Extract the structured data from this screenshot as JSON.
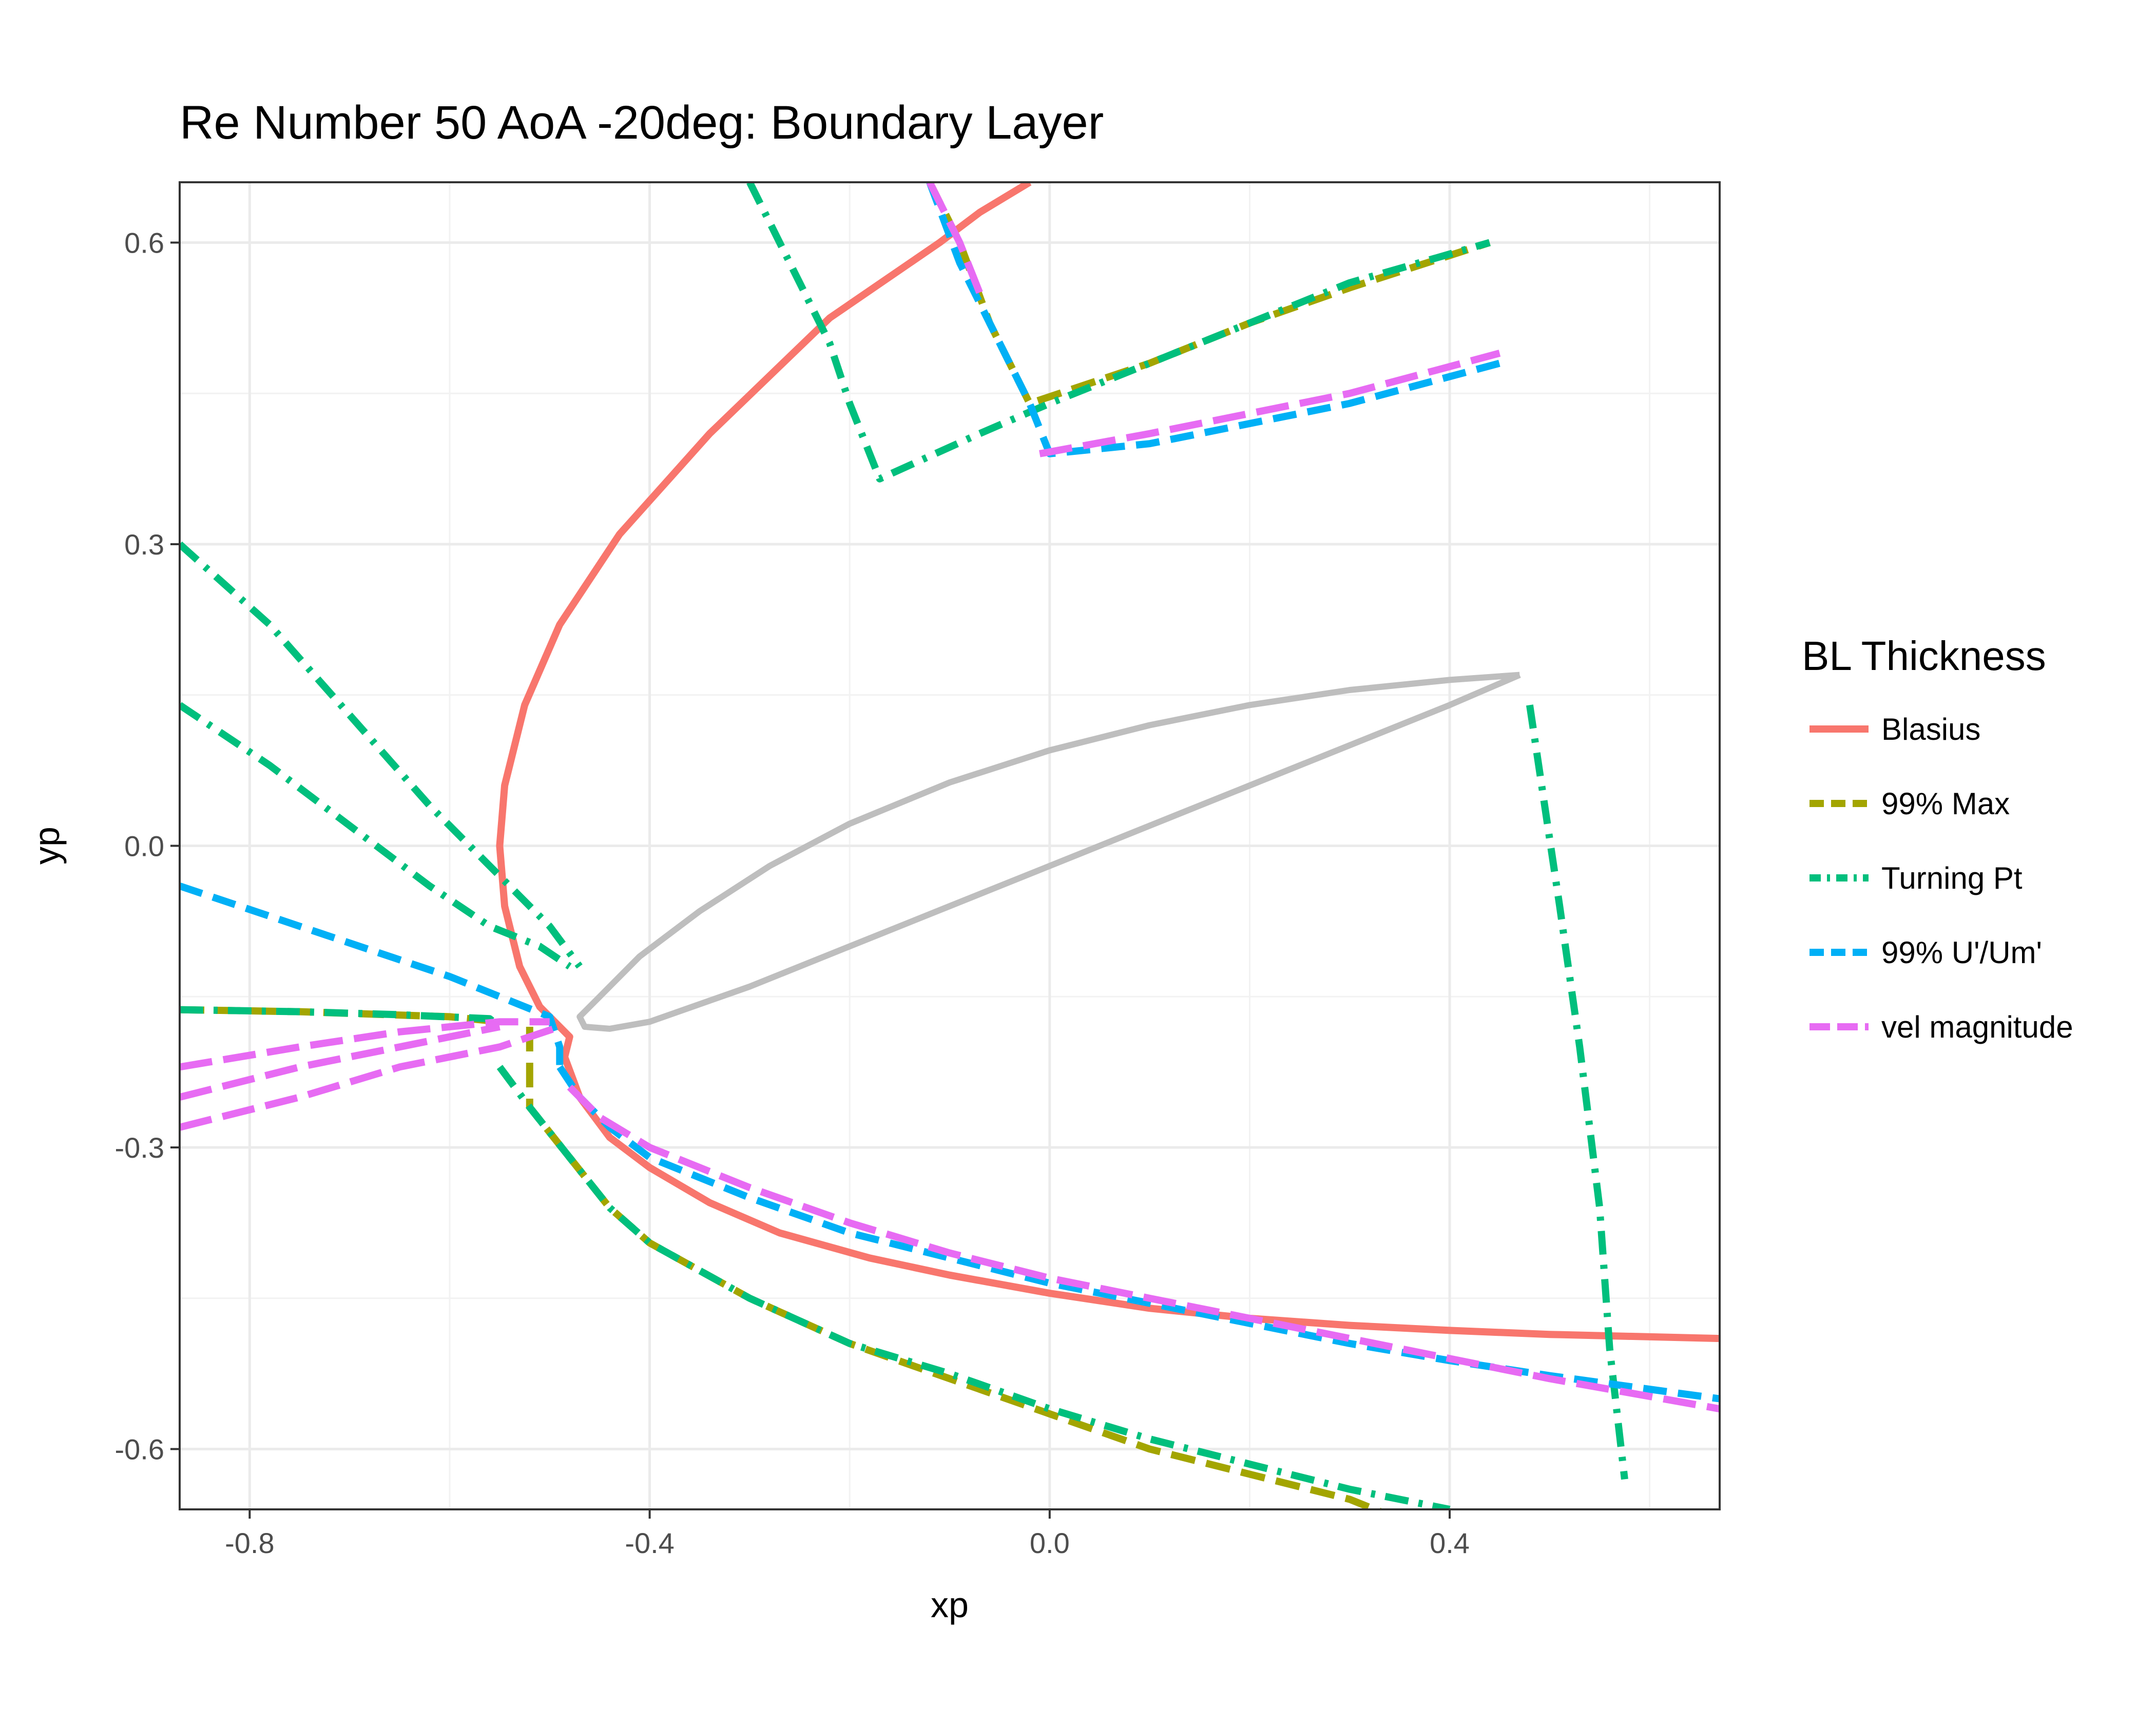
{
  "chart_data": {
    "type": "line",
    "title": "Re Number 50 AoA -20deg: Boundary Layer",
    "xlabel": "xp",
    "ylabel": "yp",
    "xlim": [
      -0.87,
      0.67
    ],
    "ylim": [
      -0.66,
      0.66
    ],
    "x_ticks": [
      -0.8,
      -0.4,
      0.0,
      0.4
    ],
    "x_tick_labels": [
      "-0.8",
      "-0.4",
      "0.0",
      "0.4"
    ],
    "y_ticks": [
      -0.6,
      -0.3,
      0.0,
      0.3,
      0.6
    ],
    "y_tick_labels": [
      "-0.6",
      "-0.3",
      "0.0",
      "0.3",
      "0.6"
    ],
    "grid": true,
    "legend_title": "BL Thickness",
    "legend_position": "right",
    "airfoil": {
      "name": "airfoil outline",
      "color": "#BEBEBE",
      "points": [
        [
          0.47,
          0.17
        ],
        [
          0.4,
          0.165
        ],
        [
          0.3,
          0.155
        ],
        [
          0.2,
          0.14
        ],
        [
          0.1,
          0.12
        ],
        [
          0.0,
          0.095
        ],
        [
          -0.1,
          0.063
        ],
        [
          -0.2,
          0.022
        ],
        [
          -0.28,
          -0.02
        ],
        [
          -0.35,
          -0.065
        ],
        [
          -0.41,
          -0.11
        ],
        [
          -0.45,
          -0.15
        ],
        [
          -0.47,
          -0.17
        ],
        [
          -0.465,
          -0.18
        ],
        [
          -0.44,
          -0.182
        ],
        [
          -0.4,
          -0.175
        ],
        [
          -0.3,
          -0.14
        ],
        [
          -0.2,
          -0.1
        ],
        [
          -0.1,
          -0.06
        ],
        [
          0.0,
          -0.02
        ],
        [
          0.1,
          0.02
        ],
        [
          0.2,
          0.06
        ],
        [
          0.3,
          0.1
        ],
        [
          0.4,
          0.14
        ],
        [
          0.47,
          0.17
        ]
      ]
    },
    "series": [
      {
        "name": "Blasius",
        "color": "#F8766D",
        "dash": "solid",
        "segments": [
          [
            [
              -0.02,
              0.66
            ],
            [
              -0.07,
              0.63
            ],
            [
              -0.11,
              0.6
            ],
            [
              -0.22,
              0.525
            ],
            [
              -0.34,
              0.41
            ],
            [
              -0.43,
              0.31
            ],
            [
              -0.49,
              0.22
            ],
            [
              -0.525,
              0.14
            ],
            [
              -0.545,
              0.06
            ],
            [
              -0.55,
              0.0
            ],
            [
              -0.545,
              -0.06
            ],
            [
              -0.53,
              -0.12
            ],
            [
              -0.51,
              -0.16
            ],
            [
              -0.49,
              -0.18
            ],
            [
              -0.48,
              -0.19
            ],
            [
              -0.485,
              -0.21
            ],
            [
              -0.47,
              -0.25
            ],
            [
              -0.44,
              -0.29
            ],
            [
              -0.4,
              -0.32
            ],
            [
              -0.34,
              -0.355
            ],
            [
              -0.27,
              -0.385
            ],
            [
              -0.18,
              -0.41
            ],
            [
              -0.1,
              -0.427
            ],
            [
              0.0,
              -0.445
            ],
            [
              0.1,
              -0.46
            ],
            [
              0.2,
              -0.47
            ],
            [
              0.3,
              -0.477
            ],
            [
              0.4,
              -0.482
            ],
            [
              0.5,
              -0.486
            ],
            [
              0.67,
              -0.49
            ]
          ]
        ]
      },
      {
        "name": "99% Max",
        "color": "#A3A500",
        "dash": "48 22",
        "segments": [
          [
            [
              -0.12,
              0.66
            ],
            [
              -0.09,
              0.6
            ],
            [
              -0.06,
              0.52
            ],
            [
              -0.02,
              0.44
            ],
            [
              0.1,
              0.48
            ],
            [
              0.2,
              0.52
            ],
            [
              0.3,
              0.555
            ],
            [
              0.44,
              0.6
            ]
          ],
          [
            [
              -0.87,
              -0.163
            ],
            [
              -0.75,
              -0.165
            ],
            [
              -0.6,
              -0.17
            ],
            [
              -0.55,
              -0.175
            ]
          ],
          [
            [
              -0.52,
              -0.18
            ],
            [
              -0.52,
              -0.26
            ],
            [
              -0.48,
              -0.31
            ],
            [
              -0.44,
              -0.36
            ],
            [
              -0.4,
              -0.395
            ],
            [
              -0.3,
              -0.45
            ],
            [
              -0.2,
              -0.495
            ],
            [
              -0.1,
              -0.53
            ],
            [
              0.0,
              -0.565
            ],
            [
              0.1,
              -0.6
            ],
            [
              0.2,
              -0.625
            ],
            [
              0.3,
              -0.65
            ],
            [
              0.35,
              -0.67
            ]
          ]
        ]
      },
      {
        "name": "Turning Pt",
        "color": "#00BF7D",
        "dash": "46 20 8 20",
        "segments": [
          [
            [
              -0.3,
              0.66
            ],
            [
              -0.25,
              0.56
            ],
            [
              -0.22,
              0.5
            ],
            [
              -0.2,
              0.44
            ],
            [
              -0.17,
              0.365
            ],
            [
              -0.07,
              0.41
            ],
            [
              0.0,
              0.44
            ],
            [
              0.1,
              0.48
            ],
            [
              0.2,
              0.52
            ],
            [
              0.3,
              0.56
            ],
            [
              0.44,
              0.6
            ]
          ],
          [
            [
              -0.87,
              0.3
            ],
            [
              -0.78,
              0.22
            ],
            [
              -0.7,
              0.13
            ],
            [
              -0.62,
              0.04
            ],
            [
              -0.55,
              -0.03
            ],
            [
              -0.5,
              -0.08
            ],
            [
              -0.47,
              -0.12
            ]
          ],
          [
            [
              -0.87,
              0.14
            ],
            [
              -0.78,
              0.08
            ],
            [
              -0.7,
              0.02
            ],
            [
              -0.62,
              -0.04
            ],
            [
              -0.56,
              -0.08
            ],
            [
              -0.51,
              -0.1
            ],
            [
              -0.48,
              -0.12
            ]
          ],
          [
            [
              -0.87,
              -0.163
            ],
            [
              -0.75,
              -0.165
            ],
            [
              -0.65,
              -0.168
            ],
            [
              -0.56,
              -0.172
            ],
            [
              -0.55,
              -0.18
            ]
          ],
          [
            [
              -0.55,
              -0.22
            ],
            [
              -0.52,
              -0.26
            ],
            [
              -0.48,
              -0.31
            ],
            [
              -0.44,
              -0.36
            ],
            [
              -0.4,
              -0.395
            ],
            [
              -0.3,
              -0.45
            ],
            [
              -0.2,
              -0.495
            ],
            [
              -0.1,
              -0.525
            ],
            [
              0.0,
              -0.56
            ],
            [
              0.1,
              -0.59
            ],
            [
              0.2,
              -0.615
            ],
            [
              0.3,
              -0.64
            ],
            [
              0.4,
              -0.66
            ]
          ],
          [
            [
              0.48,
              0.14
            ],
            [
              0.51,
              -0.06
            ],
            [
              0.53,
              -0.2
            ],
            [
              0.55,
              -0.36
            ],
            [
              0.56,
              -0.5
            ],
            [
              0.575,
              -0.63
            ]
          ]
        ]
      },
      {
        "name": "99% U'/Um'",
        "color": "#00B0F6",
        "dash": "46 22",
        "segments": [
          [
            [
              -0.12,
              0.66
            ],
            [
              -0.09,
              0.58
            ],
            [
              -0.06,
              0.52
            ],
            [
              -0.02,
              0.44
            ],
            [
              0.0,
              0.39
            ],
            [
              0.1,
              0.4
            ],
            [
              0.2,
              0.42
            ],
            [
              0.3,
              0.44
            ],
            [
              0.45,
              0.48
            ]
          ],
          [
            [
              -0.87,
              -0.04
            ],
            [
              -0.75,
              -0.08
            ],
            [
              -0.6,
              -0.13
            ],
            [
              -0.5,
              -0.17
            ],
            [
              -0.49,
              -0.2
            ],
            [
              -0.49,
              -0.22
            ]
          ],
          [
            [
              -0.49,
              -0.22
            ],
            [
              -0.47,
              -0.25
            ],
            [
              -0.44,
              -0.28
            ],
            [
              -0.4,
              -0.31
            ],
            [
              -0.3,
              -0.35
            ],
            [
              -0.2,
              -0.385
            ],
            [
              -0.1,
              -0.41
            ],
            [
              0.0,
              -0.435
            ],
            [
              0.1,
              -0.455
            ],
            [
              0.2,
              -0.475
            ],
            [
              0.3,
              -0.495
            ],
            [
              0.4,
              -0.512
            ],
            [
              0.5,
              -0.527
            ],
            [
              0.67,
              -0.55
            ]
          ]
        ]
      },
      {
        "name": "vel magnitude",
        "color": "#E76BF3",
        "dash": "64 22",
        "segments": [
          [
            [
              -0.12,
              0.66
            ],
            [
              -0.09,
              0.6
            ],
            [
              -0.07,
              0.55
            ]
          ],
          [
            [
              -0.01,
              0.39
            ],
            [
              0.1,
              0.41
            ],
            [
              0.2,
              0.43
            ],
            [
              0.3,
              0.45
            ],
            [
              0.45,
              0.49
            ]
          ],
          [
            [
              -0.87,
              -0.22
            ],
            [
              -0.75,
              -0.2
            ],
            [
              -0.65,
              -0.185
            ],
            [
              -0.55,
              -0.175
            ],
            [
              -0.5,
              -0.175
            ]
          ],
          [
            [
              -0.87,
              -0.25
            ],
            [
              -0.75,
              -0.22
            ],
            [
              -0.65,
              -0.2
            ],
            [
              -0.55,
              -0.18
            ]
          ],
          [
            [
              -0.87,
              -0.28
            ],
            [
              -0.75,
              -0.25
            ],
            [
              -0.65,
              -0.22
            ],
            [
              -0.55,
              -0.2
            ],
            [
              -0.49,
              -0.18
            ]
          ],
          [
            [
              -0.48,
              -0.24
            ],
            [
              -0.45,
              -0.27
            ],
            [
              -0.4,
              -0.3
            ],
            [
              -0.3,
              -0.34
            ],
            [
              -0.2,
              -0.375
            ],
            [
              -0.1,
              -0.405
            ],
            [
              0.0,
              -0.43
            ],
            [
              0.1,
              -0.45
            ],
            [
              0.2,
              -0.47
            ],
            [
              0.3,
              -0.49
            ],
            [
              0.4,
              -0.51
            ],
            [
              0.5,
              -0.53
            ],
            [
              0.67,
              -0.56
            ]
          ]
        ]
      }
    ]
  }
}
